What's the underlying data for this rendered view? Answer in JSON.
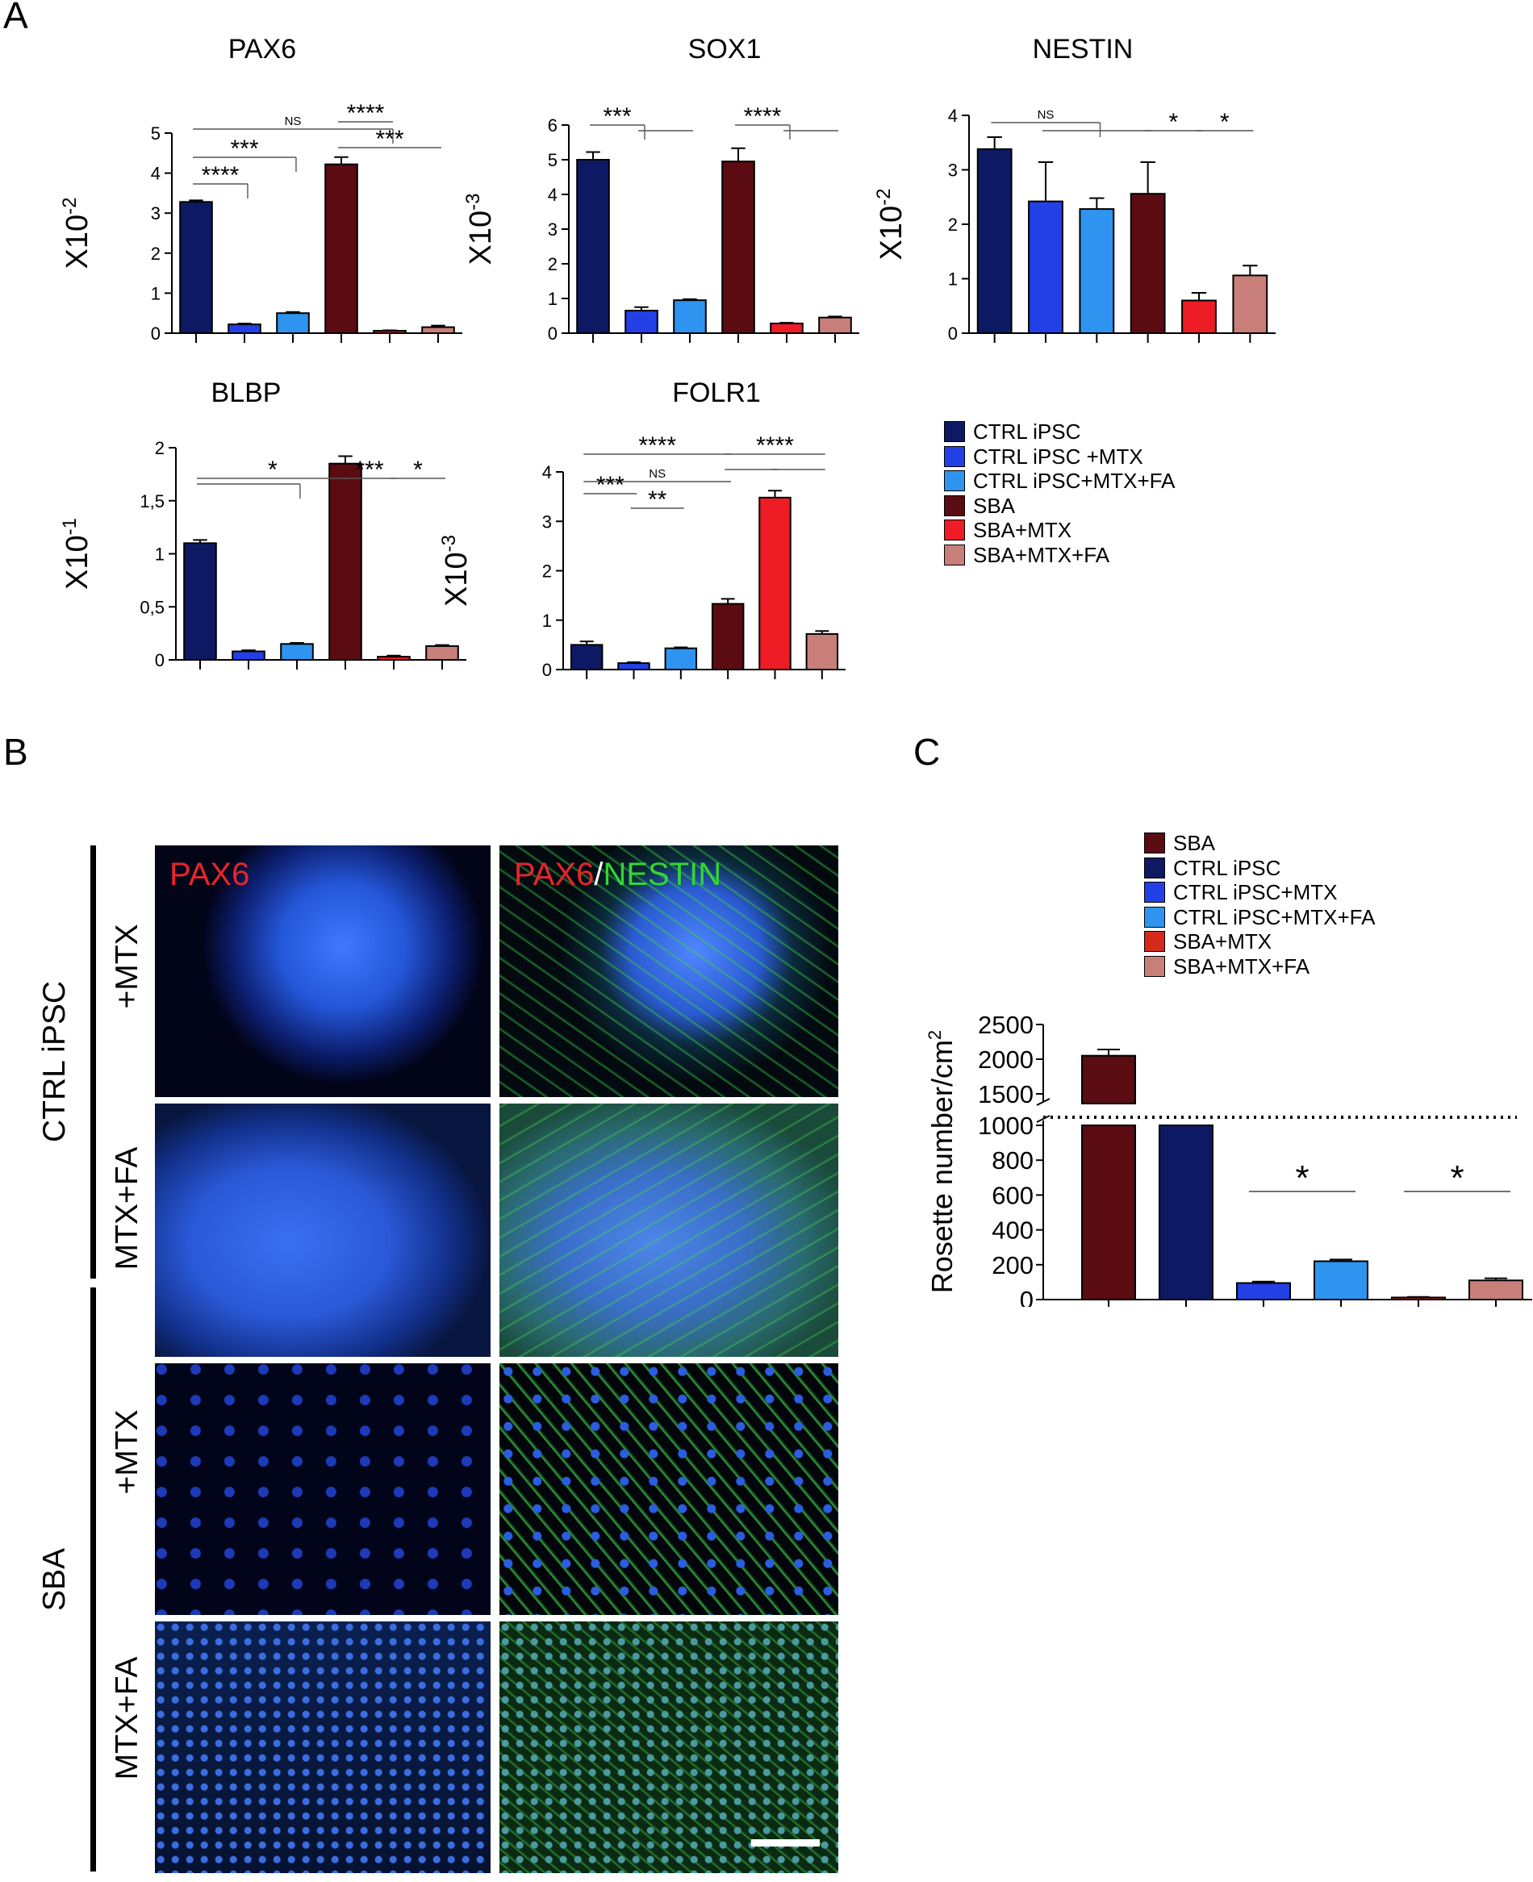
{
  "panels": {
    "a": "A",
    "b": "B",
    "c": "C"
  },
  "colors": {
    "ctrl": "#0d1a63",
    "ctrl_mtx": "#2340e6",
    "ctrl_mtx_fa": "#2e94f0",
    "sba": "#5a0c12",
    "sba_mtx": "#ee1c25",
    "sba_mtx_fa": "#c97f79",
    "pax6_red": "#e8242c",
    "nestin_green": "#33d633",
    "nuclei_blue": "#2f6df0"
  },
  "legend_a": [
    {
      "label": "CTRL iPSC",
      "color": "#0d1a63"
    },
    {
      "label": "CTRL iPSC +MTX",
      "color": "#2340e6"
    },
    {
      "label": "CTRL iPSC+MTX+FA",
      "color": "#2e94f0"
    },
    {
      "label": "SBA",
      "color": "#5a0c12"
    },
    {
      "label": "SBA+MTX",
      "color": "#ee1c25"
    },
    {
      "label": "SBA+MTX+FA",
      "color": "#c97f79"
    }
  ],
  "legend_c": [
    {
      "label": "SBA",
      "color": "#5a0c12"
    },
    {
      "label": "CTRL iPSC",
      "color": "#0d1a63"
    },
    {
      "label": "CTRL iPSC+MTX",
      "color": "#2340e6"
    },
    {
      "label": "CTRL iPSC+MTX+FA",
      "color": "#2e94f0"
    },
    {
      "label": "SBA+MTX",
      "color": "#d42a1c"
    },
    {
      "label": "SBA+MTX+FA",
      "color": "#c97f79"
    }
  ],
  "panel_b": {
    "groups": [
      "CTRL iPSC",
      "SBA"
    ],
    "conditions": [
      "+MTX",
      "MTX+FA",
      "+MTX",
      "MTX+FA"
    ],
    "channel_labels": {
      "left": "PAX6",
      "right_red": "PAX6",
      "right_sep": "/",
      "right_green": "NESTIN"
    }
  },
  "chart_data": [
    {
      "type": "bar",
      "title": "PAX6",
      "ylabel": "X10-2",
      "ylabel_base": "X10",
      "ylabel_exp": "-2",
      "ylim": [
        0,
        5
      ],
      "yticks": [
        "0",
        "1",
        "2",
        "3",
        "4",
        "5"
      ],
      "values": [
        3.28,
        0.22,
        0.5,
        4.22,
        0.06,
        0.15
      ],
      "errors": [
        0.04,
        0.02,
        0.03,
        0.18,
        0.01,
        0.04
      ],
      "colors": [
        "#0d1a63",
        "#2340e6",
        "#2e94f0",
        "#5a0c12",
        "#ee1c25",
        "#c97f79"
      ],
      "significance": [
        {
          "label": "NS",
          "from": 0,
          "to": 4,
          "size": "small"
        },
        {
          "label": "****",
          "from": 3,
          "to": 4
        },
        {
          "label": "***",
          "from": 0,
          "to": 2
        },
        {
          "label": "***",
          "from": 3,
          "to": 5
        },
        {
          "label": "****",
          "from": 0,
          "to": 1
        }
      ]
    },
    {
      "type": "bar",
      "title": "SOX1",
      "ylabel": "X10-3",
      "ylabel_base": "X10",
      "ylabel_exp": "-3",
      "ylim": [
        0,
        6
      ],
      "yticks": [
        "0",
        "1",
        "2",
        "3",
        "4",
        "5",
        "6"
      ],
      "values": [
        5.0,
        0.65,
        0.95,
        4.95,
        0.28,
        0.45
      ],
      "errors": [
        0.22,
        0.1,
        0.03,
        0.38,
        0.02,
        0.03
      ],
      "colors": [
        "#0d1a63",
        "#2340e6",
        "#2e94f0",
        "#5a0c12",
        "#ee1c25",
        "#c97f79"
      ],
      "significance": [
        {
          "label": "***",
          "from": 0,
          "to": 1
        },
        {
          "label": "",
          "from": 1,
          "to": 2
        },
        {
          "label": "****",
          "from": 3,
          "to": 4
        },
        {
          "label": "",
          "from": 4,
          "to": 5
        }
      ]
    },
    {
      "type": "bar",
      "title": "NESTIN",
      "ylabel": "X10-2",
      "ylabel_base": "X10",
      "ylabel_exp": "-2",
      "ylim": [
        0,
        4
      ],
      "yticks": [
        "0",
        "1",
        "2",
        "3",
        "4"
      ],
      "values": [
        3.38,
        2.42,
        2.28,
        2.56,
        0.6,
        1.06
      ],
      "errors": [
        0.22,
        0.72,
        0.2,
        0.58,
        0.14,
        0.18
      ],
      "colors": [
        "#0d1a63",
        "#2340e6",
        "#2e94f0",
        "#5a0c12",
        "#ee1c25",
        "#c97f79"
      ],
      "significance": [
        {
          "label": "NS",
          "from": 0,
          "to": 2,
          "size": "small"
        },
        {
          "label": "",
          "from": 1,
          "to": 3
        },
        {
          "label": "*",
          "from": 3,
          "to": 4
        },
        {
          "label": "*",
          "from": 4,
          "to": 5
        }
      ]
    },
    {
      "type": "bar",
      "title": "BLBP",
      "ylabel": "X10-1",
      "ylabel_base": "X10",
      "ylabel_exp": "-1",
      "ylim": [
        0,
        2
      ],
      "yticks": [
        "0",
        "0,5",
        "1",
        "1,5",
        "2"
      ],
      "values": [
        1.1,
        0.08,
        0.15,
        1.85,
        0.03,
        0.13
      ],
      "errors": [
        0.03,
        0.01,
        0.01,
        0.07,
        0.01,
        0.01
      ],
      "colors": [
        "#0d1a63",
        "#2340e6",
        "#2e94f0",
        "#5a0c12",
        "#ee1c25",
        "#c97f79"
      ],
      "significance": [
        {
          "label": "*",
          "from": 0,
          "to": 3
        },
        {
          "label": "",
          "from": 0,
          "to": 2
        },
        {
          "label": "***",
          "from": 3,
          "to": 4
        },
        {
          "label": "*",
          "from": 4,
          "to": 5
        }
      ]
    },
    {
      "type": "bar",
      "title": "FOLR1",
      "ylabel": "X10-3",
      "ylabel_base": "X10",
      "ylabel_exp": "-3",
      "ylim": [
        0,
        4
      ],
      "yticks": [
        "0",
        "1",
        "2",
        "3",
        "4"
      ],
      "values": [
        0.5,
        0.13,
        0.43,
        1.33,
        3.48,
        0.72
      ],
      "errors": [
        0.07,
        0.02,
        0.02,
        0.1,
        0.14,
        0.06
      ],
      "colors": [
        "#0d1a63",
        "#2340e6",
        "#2e94f0",
        "#5a0c12",
        "#ee1c25",
        "#c97f79"
      ],
      "significance": [
        {
          "label": "****",
          "from": 0,
          "to": 3
        },
        {
          "label": "****",
          "from": 3,
          "to": 5
        },
        {
          "label": "NS",
          "from": 0,
          "to": 3,
          "size": "small"
        },
        {
          "label": "",
          "from": 3,
          "to": 4
        },
        {
          "label": "",
          "from": 4,
          "to": 5
        },
        {
          "label": "***",
          "from": 0,
          "to": 1
        },
        {
          "label": "**",
          "from": 1,
          "to": 2
        }
      ]
    },
    {
      "type": "bar",
      "ylabel": "Rosette number/cm2",
      "ylabel_base": "Rosette number/cm",
      "ylabel_exp": "2",
      "axis_break": true,
      "ylim_lower": [
        0,
        1000
      ],
      "ylim_upper": [
        1500,
        2500
      ],
      "yticks_lower": [
        "0",
        "200",
        "400",
        "600",
        "800",
        "1000"
      ],
      "yticks_upper": [
        "1500",
        "2000",
        "2500"
      ],
      "values": [
        2050,
        1000,
        95,
        220,
        12,
        110
      ],
      "errors": [
        90,
        0,
        8,
        10,
        3,
        12
      ],
      "colors": [
        "#5a0c12",
        "#0d1a63",
        "#2340e6",
        "#2e94f0",
        "#d42a1c",
        "#c97f79"
      ],
      "significance": [
        {
          "label": "*",
          "from": 2,
          "to": 3
        },
        {
          "label": "*",
          "from": 4,
          "to": 5
        }
      ]
    }
  ]
}
